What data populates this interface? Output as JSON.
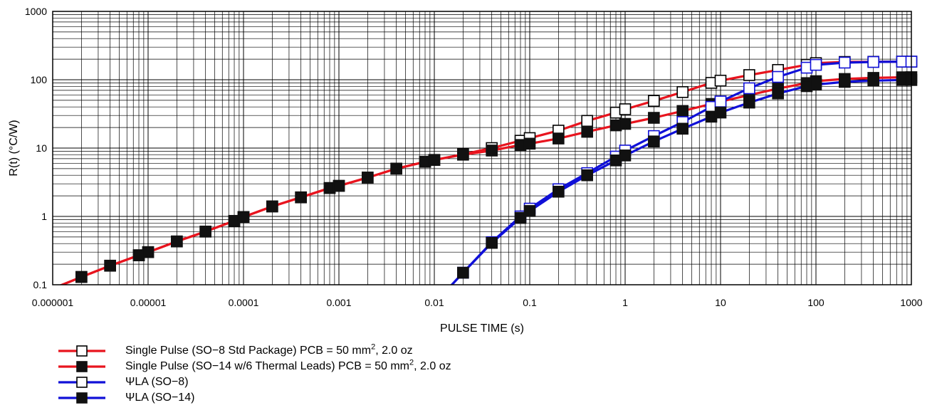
{
  "chart_data": {
    "type": "line",
    "title": "",
    "xlabel": "PULSE TIME (s)",
    "ylabel": "R(t) (°C/W)",
    "xscale": "log",
    "yscale": "log",
    "xlim": [
      1e-06,
      1000
    ],
    "ylim": [
      0.1,
      1000
    ],
    "grid": true,
    "legend_position": "bottom-left",
    "x_tick_labels": [
      "0.000001",
      "0.00001",
      "0.0001",
      "0.001",
      "0.01",
      "0.1",
      "1",
      "10",
      "100",
      "1000"
    ],
    "y_tick_labels": [
      "0.1",
      "1",
      "10",
      "100",
      "1000"
    ],
    "series": [
      {
        "name": "Single Pulse (SO−8 Std Package) PCB = 50 mm², 2.0 oz",
        "name_text": "Single Pulse (SO−8 Std Package) PCB = 50 mm",
        "name_sup": "2",
        "name_tail": ", 2.0 oz",
        "color": "#e8141e",
        "marker": "open-square",
        "x": [
          2e-06,
          4e-06,
          8e-06,
          1e-05,
          2e-05,
          4e-05,
          8e-05,
          0.0001,
          0.0002,
          0.0004,
          0.0008,
          0.001,
          0.002,
          0.004,
          0.008,
          0.01,
          0.02,
          0.04,
          0.08,
          0.1,
          0.2,
          0.4,
          0.8,
          1,
          2,
          4,
          8,
          10,
          20,
          40,
          80,
          100,
          200,
          400,
          800,
          1000
        ],
        "y": [
          0.13,
          0.19,
          0.27,
          0.3,
          0.43,
          0.6,
          0.86,
          0.98,
          1.4,
          1.9,
          2.6,
          2.8,
          3.7,
          5.0,
          6.3,
          6.7,
          8.1,
          10.0,
          12.8,
          14,
          18,
          25,
          33,
          37,
          49,
          66,
          90,
          97,
          117,
          139,
          165,
          175,
          182,
          183,
          184,
          184
        ]
      },
      {
        "name": "Single Pulse (SO−14 w/6 Thermal Leads) PCB = 50 mm², 2.0 oz",
        "name_text": "Single Pulse (SO−14 w/6 Thermal Leads) PCB = 50 mm",
        "name_sup": "2",
        "name_tail": ", 2.0 oz",
        "color": "#e8141e",
        "marker": "filled-square",
        "x": [
          2e-06,
          4e-06,
          8e-06,
          1e-05,
          2e-05,
          4e-05,
          8e-05,
          0.0001,
          0.0002,
          0.0004,
          0.0008,
          0.001,
          0.002,
          0.004,
          0.008,
          0.01,
          0.02,
          0.04,
          0.08,
          0.1,
          0.2,
          0.4,
          0.8,
          1,
          2,
          4,
          8,
          10,
          20,
          40,
          80,
          100,
          200,
          400,
          800,
          1000
        ],
        "y": [
          0.13,
          0.19,
          0.27,
          0.3,
          0.43,
          0.6,
          0.86,
          0.98,
          1.4,
          1.9,
          2.6,
          2.8,
          3.7,
          5.0,
          6.3,
          6.7,
          8.0,
          9.2,
          11.1,
          11.6,
          13.8,
          17.3,
          21.5,
          22.6,
          27.7,
          34.9,
          44.2,
          47.9,
          59.6,
          74.2,
          89.3,
          95.3,
          102.6,
          106.4,
          108.6,
          109
        ]
      },
      {
        "name": "ΨLA (SO−8)",
        "name_text": "ΨLA (SO−8)",
        "name_sup": "",
        "name_tail": "",
        "color": "#1010d8",
        "marker": "open-square",
        "x": [
          0.02,
          0.04,
          0.08,
          0.1,
          0.2,
          0.4,
          0.8,
          1,
          2,
          4,
          8,
          10,
          20,
          40,
          80,
          100,
          200,
          400,
          800,
          1000
        ],
        "y": [
          0.15,
          0.42,
          1.0,
          1.3,
          2.5,
          4.3,
          7.5,
          9.2,
          15,
          24,
          40,
          48,
          75,
          110,
          150,
          165,
          178,
          182,
          184,
          184
        ]
      },
      {
        "name": "ΨLA (SO−14)",
        "name_text": "ΨLA (SO−14)",
        "name_sup": "",
        "name_tail": "",
        "color": "#1010d8",
        "marker": "filled-square",
        "x": [
          0.02,
          0.04,
          0.08,
          0.1,
          0.2,
          0.4,
          0.8,
          1,
          2,
          4,
          8,
          10,
          20,
          40,
          80,
          100,
          200,
          400,
          800,
          1000
        ],
        "y": [
          0.15,
          0.41,
          0.95,
          1.2,
          2.3,
          4.0,
          6.6,
          7.8,
          12.5,
          19.2,
          28.8,
          33.1,
          46.3,
          63.0,
          80.5,
          85,
          93,
          97,
          99,
          99
        ]
      }
    ]
  }
}
